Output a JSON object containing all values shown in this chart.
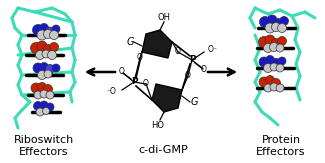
{
  "background_color": "#ffffff",
  "label_left_line1": "Riboswitch",
  "label_left_line2": "Effectors",
  "label_right_line1": "Protein",
  "label_right_line2": "Effectors",
  "label_center_line1": "c-di-GMP",
  "label_fontsize": 8.0,
  "cyan_color": "#3DDBB8",
  "black_color": "#000000",
  "red_color": "#CC2000",
  "blue_color": "#1818CC",
  "white_color": "#FFFFFF",
  "gray_color": "#B0B0B0",
  "silver_color": "#C8C8C8",
  "fig_width": 3.25,
  "fig_height": 1.63,
  "dpi": 100
}
